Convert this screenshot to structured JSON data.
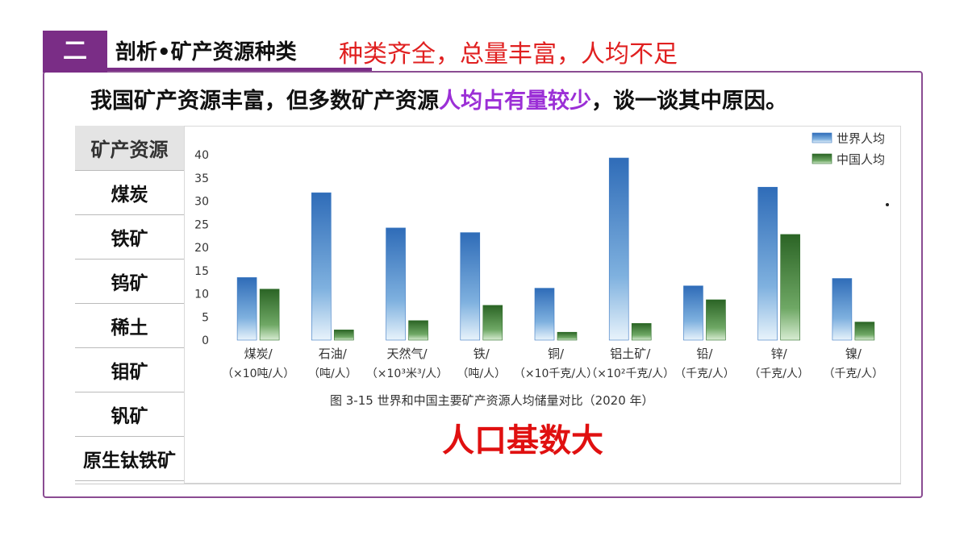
{
  "header": {
    "section_number": "二",
    "title": "剖析•矿产资源种类",
    "subtitle": "种类齐全，总量丰富，人均不足"
  },
  "question": {
    "part1": "我国矿产资源丰富，但多数矿产资源",
    "highlight": "人均占有量较少",
    "part2": "，谈一谈其中原因。"
  },
  "mineral_table": {
    "header": "矿产资源",
    "items": [
      "煤炭",
      "铁矿",
      "钨矿",
      "稀土",
      "钼矿",
      "钒矿",
      "原生钛铁矿"
    ]
  },
  "answer": "人口基数大",
  "colors": {
    "accent": "#7a2d86",
    "answer": "#e01010",
    "highlight": "#9b2fd6",
    "world_bar": "#3a78c2",
    "china_bar": "#2f6e2a"
  },
  "chart_data": {
    "type": "bar",
    "title": "图 3-15  世界和中国主要矿产资源人均储量对比（2020 年）",
    "categories": [
      {
        "name": "煤炭/",
        "unit": "（×10吨/人）"
      },
      {
        "name": "石油/",
        "unit": "（吨/人）"
      },
      {
        "name": "天然气/",
        "unit": "（×10³米³/人）"
      },
      {
        "name": "铁/",
        "unit": "（吨/人）"
      },
      {
        "name": "铜/",
        "unit": "（×10千克/人）"
      },
      {
        "name": "铝土矿/",
        "unit": "（×10²千克/人）"
      },
      {
        "name": "铅/",
        "unit": "（千克/人）"
      },
      {
        "name": "锌/",
        "unit": "（千克/人）"
      },
      {
        "name": "镍/",
        "unit": "（千克/人）"
      }
    ],
    "series": [
      {
        "name": "世界人均",
        "values": [
          13.5,
          31.8,
          24.2,
          23.2,
          11.2,
          39.3,
          11.7,
          33.0,
          13.3
        ]
      },
      {
        "name": "中国人均",
        "values": [
          11.0,
          2.2,
          4.2,
          7.5,
          1.7,
          3.6,
          8.7,
          22.8,
          3.9
        ]
      }
    ],
    "ylim": [
      0,
      40
    ],
    "yticks": [
      0,
      5,
      10,
      15,
      20,
      25,
      30,
      35,
      40
    ],
    "legend_position": "top-right",
    "grid": false
  }
}
